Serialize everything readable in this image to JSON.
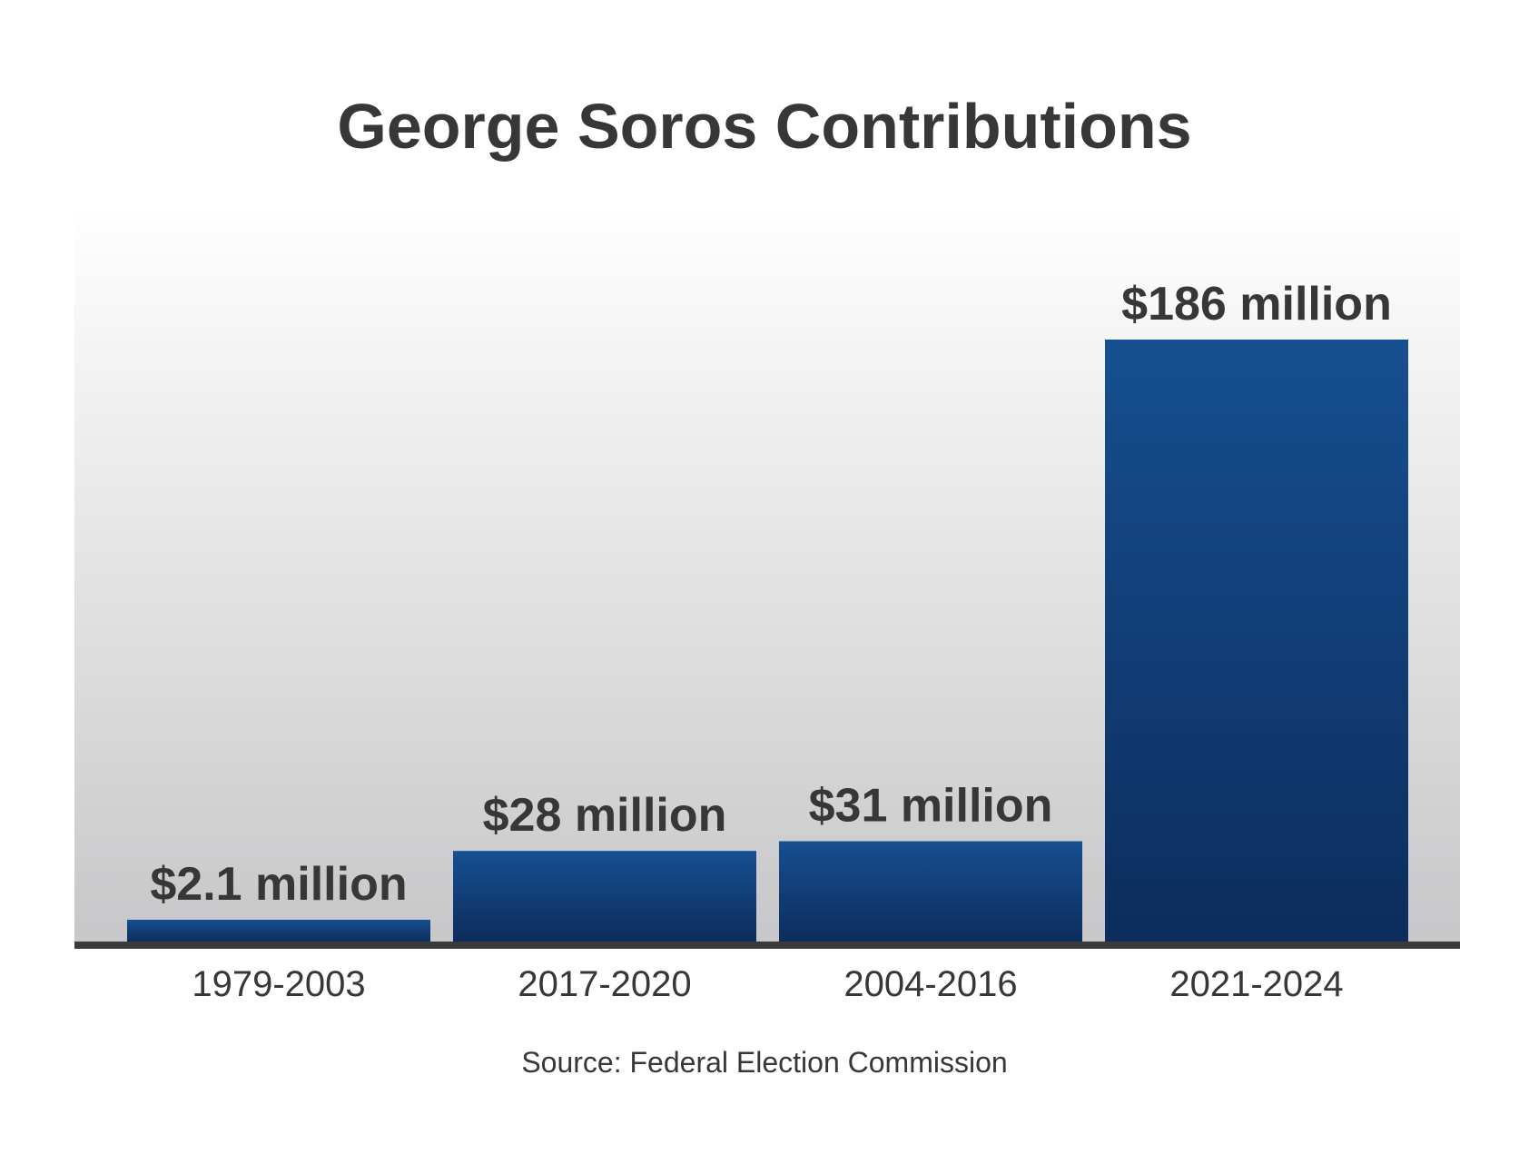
{
  "chart_data": {
    "type": "bar",
    "title": "George Soros Contributions",
    "categories": [
      "1979-2003",
      "2017-2020",
      "2004-2016",
      "2021-2024"
    ],
    "values": [
      2.1,
      28,
      31,
      186
    ],
    "value_labels": [
      "$2.1 million",
      "$28 million",
      "$31 million",
      "$186 million"
    ],
    "unit": "million USD",
    "source": "Source: Federal Election Commission",
    "xlabel": "",
    "ylabel": "",
    "ylim": [
      0,
      186
    ],
    "grid": false,
    "legend": "none"
  },
  "colors": {
    "bar_top": "#164f91",
    "bar_bottom": "#0c2d5c",
    "text": "#373737",
    "baseline": "#3a3a3a",
    "plot_bg_top": "#ffffff",
    "plot_bg_bottom": "#c7c7c9"
  }
}
